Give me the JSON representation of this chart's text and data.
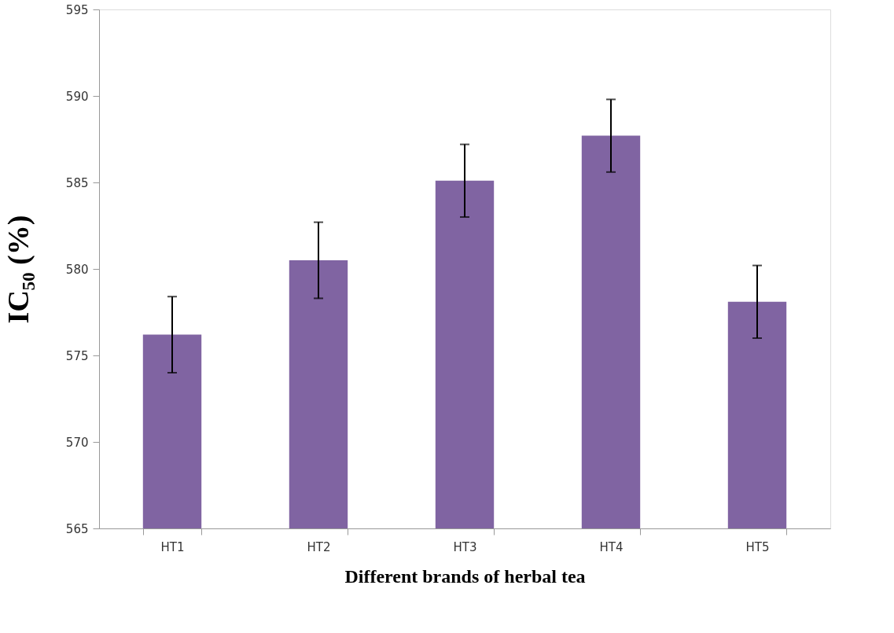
{
  "chart_data": {
    "type": "bar",
    "xlabel": "Different brands of herbal tea",
    "ylabel": "IC₅₀ (%)",
    "categories": [
      "HT1",
      "HT2",
      "HT3",
      "HT4",
      "HT5"
    ],
    "values": [
      576.2,
      580.5,
      585.1,
      587.7,
      578.1
    ],
    "errors": [
      2.2,
      2.2,
      2.1,
      2.1,
      2.1
    ],
    "color": "#8064a2",
    "ylim": [
      565,
      595
    ],
    "yticks": [
      565,
      570,
      575,
      580,
      585,
      590,
      595
    ],
    "grid": false
  }
}
